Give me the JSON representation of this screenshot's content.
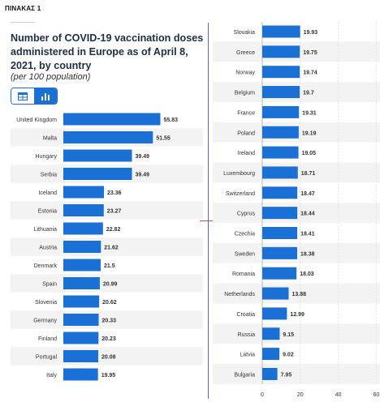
{
  "document": {
    "label": "ΠΙΝΑΚΑΣ 1"
  },
  "chart_data": {
    "type": "bar",
    "orientation": "horizontal",
    "title": "Number of COVID-19 vaccination doses administered in Europe as of April 8, 2021, by country",
    "subtitle": "(per 100 population)",
    "categories": [
      "United Kingdom",
      "Malta",
      "Hungary",
      "Serbia",
      "Iceland",
      "Estonia",
      "Lithuania",
      "Austria",
      "Denmark",
      "Spain",
      "Slovenia",
      "Germany",
      "Finland",
      "Portugal",
      "Italy",
      "Slovakia",
      "Greece",
      "Norway",
      "Belgium",
      "France",
      "Poland",
      "Ireland",
      "Luxembourg",
      "Switzerland",
      "Cyprus",
      "Czechia",
      "Sweden",
      "Romania",
      "Netherlands",
      "Croatia",
      "Russia",
      "Latvia",
      "Bulgaria"
    ],
    "values": [
      55.83,
      51.55,
      39.49,
      39.49,
      23.36,
      23.27,
      22.82,
      21.62,
      21.5,
      20.99,
      20.62,
      20.33,
      20.23,
      20.08,
      19.95,
      19.93,
      19.75,
      19.74,
      19.7,
      19.31,
      19.19,
      19.05,
      18.71,
      18.47,
      18.44,
      18.41,
      18.38,
      18.03,
      13.88,
      12.99,
      9.15,
      9.02,
      7.95
    ],
    "value_labels": [
      "55.83",
      "51.55",
      "39.49",
      "39.49",
      "23.36",
      "23.27",
      "22.82",
      "21.62",
      "21.5",
      "20.99",
      "20.62",
      "20.33",
      "20.23",
      "20.08",
      "19.95",
      "19.93",
      "19.75",
      "19.74",
      "19.7",
      "19.31",
      "19.19",
      "19.05",
      "18.71",
      "18.47",
      "18.44",
      "18.41",
      "18.38",
      "18.03",
      "13.88",
      "12.99",
      "9.15",
      "9.02",
      "7.95"
    ],
    "x_ticks": [
      "0",
      "20",
      "40",
      "60"
    ],
    "xlim": [
      0,
      60
    ],
    "bar_color": "#1b70d6",
    "grid": true
  },
  "toggle": {
    "table_icon": "table-icon",
    "bar_icon": "bar-chart-icon",
    "active": "bar",
    "accent": "#1b70d6"
  }
}
